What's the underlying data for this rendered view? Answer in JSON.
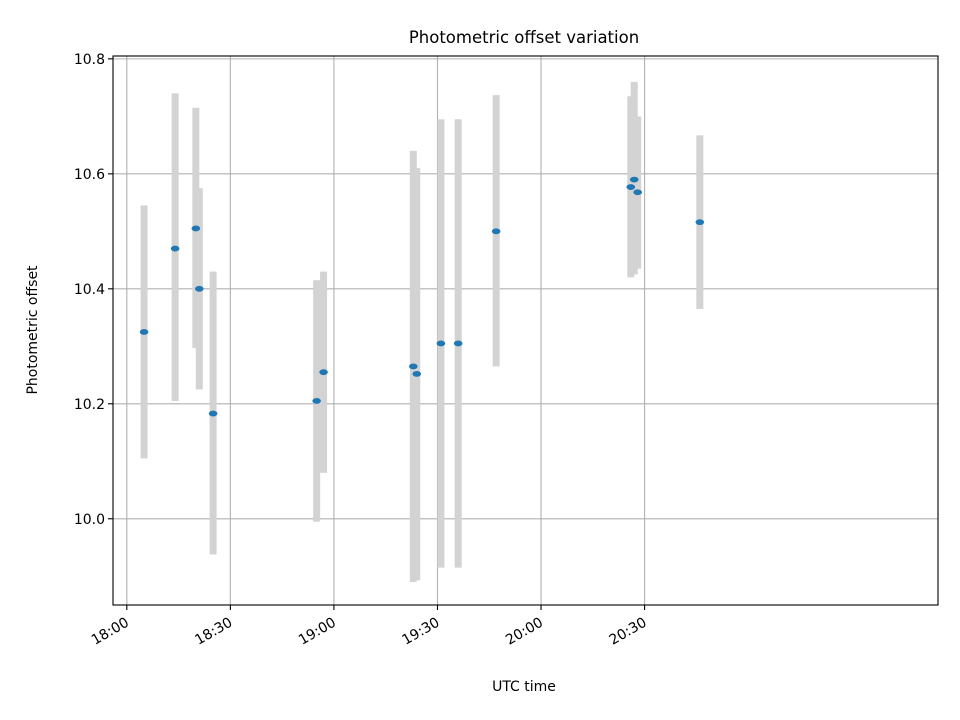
{
  "chart_data": {
    "type": "scatter",
    "title": "Photometric offset variation",
    "xlabel": "UTC time",
    "ylabel": "Photometric offset",
    "x_axis_type": "time",
    "xlim": [
      "17:56",
      "21:55"
    ],
    "ylim": [
      9.85,
      10.805
    ],
    "x_ticks": [
      "18:00",
      "18:30",
      "19:00",
      "19:30",
      "20:00",
      "20:30"
    ],
    "y_ticks": [
      10.0,
      10.2,
      10.4,
      10.6,
      10.8
    ],
    "y_tick_labels": [
      "10.0",
      "10.2",
      "10.4",
      "10.6",
      "10.8"
    ],
    "grid": true,
    "colors": {
      "point": "#1f77b4",
      "errorbar": "#d3d3d3"
    },
    "points": [
      {
        "x": "18:05",
        "y": 10.325,
        "ymin": 10.105,
        "ymax": 10.545
      },
      {
        "x": "18:14",
        "y": 10.47,
        "ymin": 10.205,
        "ymax": 10.74
      },
      {
        "x": "18:20",
        "y": 10.505,
        "ymin": 10.297,
        "ymax": 10.715
      },
      {
        "x": "18:21",
        "y": 10.4,
        "ymin": 10.225,
        "ymax": 10.575
      },
      {
        "x": "18:25",
        "y": 10.183,
        "ymin": 9.938,
        "ymax": 10.43
      },
      {
        "x": "18:55",
        "y": 10.205,
        "ymin": 9.995,
        "ymax": 10.415
      },
      {
        "x": "18:57",
        "y": 10.255,
        "ymin": 10.08,
        "ymax": 10.43
      },
      {
        "x": "19:23",
        "y": 10.265,
        "ymin": 9.89,
        "ymax": 10.64
      },
      {
        "x": "19:24",
        "y": 10.252,
        "ymin": 9.893,
        "ymax": 10.61
      },
      {
        "x": "19:31",
        "y": 10.305,
        "ymin": 9.915,
        "ymax": 10.695
      },
      {
        "x": "19:36",
        "y": 10.305,
        "ymin": 9.915,
        "ymax": 10.695
      },
      {
        "x": "19:47",
        "y": 10.5,
        "ymin": 10.265,
        "ymax": 10.737
      },
      {
        "x": "20:26",
        "y": 10.577,
        "ymin": 10.42,
        "ymax": 10.735
      },
      {
        "x": "20:27",
        "y": 10.59,
        "ymin": 10.425,
        "ymax": 10.76
      },
      {
        "x": "20:28",
        "y": 10.568,
        "ymin": 10.435,
        "ymax": 10.7
      },
      {
        "x": "20:46",
        "y": 10.516,
        "ymin": 10.365,
        "ymax": 10.667
      }
    ]
  }
}
